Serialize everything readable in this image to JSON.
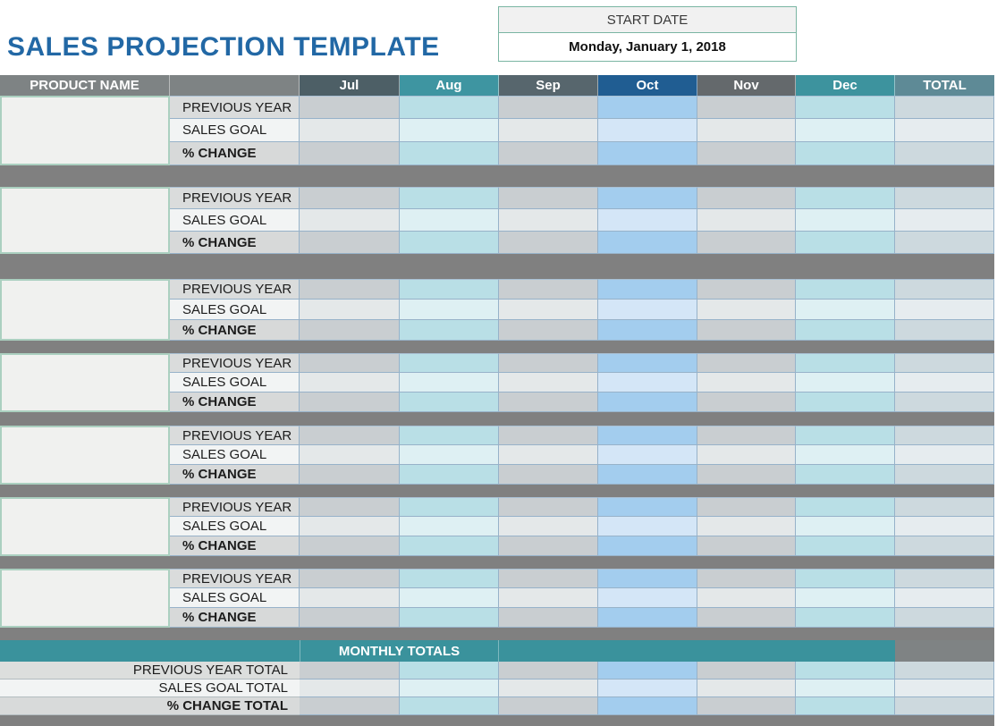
{
  "title": "SALES PROJECTION TEMPLATE",
  "start_date": {
    "label": "START DATE",
    "value": "Monday, January 1, 2018"
  },
  "table": {
    "product_header": "PRODUCT NAME",
    "months": [
      "Jul",
      "Aug",
      "Sep",
      "Oct",
      "Nov",
      "Dec"
    ],
    "total_header": "TOTAL",
    "row_labels": [
      "PREVIOUS YEAR",
      "SALES GOAL",
      "% CHANGE"
    ],
    "blocks": [
      {
        "product_name": ""
      },
      {
        "product_name": ""
      },
      {
        "product_name": ""
      },
      {
        "product_name": ""
      },
      {
        "product_name": ""
      },
      {
        "product_name": ""
      },
      {
        "product_name": ""
      }
    ],
    "cell_values": ""
  },
  "totals": {
    "header": "MONTHLY TOTALS",
    "row_labels": [
      "PREVIOUS YEAR TOTAL",
      "SALES GOAL TOTAL",
      "% CHANGE TOTAL"
    ]
  },
  "colors": {
    "title_blue": "#2268a5",
    "start_date_border": "#7ab5a3",
    "header_gray": "#7e8384",
    "header_jul": "#4d5f66",
    "header_aug": "#3e95a1",
    "header_sep": "#57666d",
    "header_oct": "#205d92",
    "header_nov": "#64696c",
    "header_dec": "#3d939e",
    "header_total": "#5e8a96",
    "cell_gray_dark": "#c9ced1",
    "cell_gray_light": "#e4e8e9",
    "cell_cyan_dark": "#b9dfe6",
    "cell_cyan_light": "#def0f3",
    "cell_blue_dark": "#a3cdee",
    "cell_blue_light": "#d4e6f7",
    "cell_total_dark": "#cdd9de",
    "cell_total_light": "#e6ecef",
    "separator_gray": "#808080",
    "totals_teal": "#3a929c",
    "grid_line": "#97b2c9"
  }
}
